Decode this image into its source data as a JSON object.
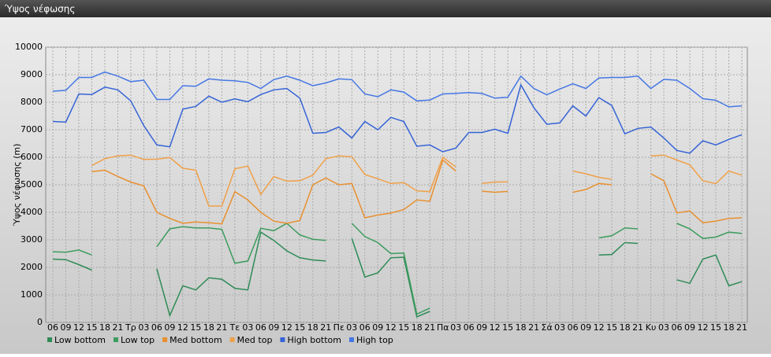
{
  "chart_data": {
    "type": "line",
    "title": "Ύψος νέφωσης",
    "y_label": "Ύψος νέφωσης (m)",
    "categories": [
      "06",
      "09",
      "12",
      "15",
      "18",
      "21",
      "Τρ",
      "03",
      "06",
      "09",
      "12",
      "15",
      "18",
      "21",
      "Τε",
      "03",
      "06",
      "09",
      "12",
      "15",
      "18",
      "21",
      "Πε",
      "03",
      "06",
      "09",
      "12",
      "15",
      "18",
      "21",
      "Πα",
      "03",
      "06",
      "09",
      "12",
      "15",
      "18",
      "21",
      "Σά",
      "03",
      "06",
      "09",
      "12",
      "15",
      "18",
      "21",
      "Κυ",
      "03",
      "06",
      "09",
      "12",
      "15",
      "18",
      "21"
    ],
    "ylim": [
      0,
      10000
    ],
    "yticks": [
      0,
      1000,
      2000,
      3000,
      4000,
      5000,
      6000,
      7000,
      8000,
      9000,
      10000
    ],
    "grid": true,
    "legend": "bottom",
    "series": [
      {
        "name": "Low bottom",
        "color": "#2e8b57",
        "values": [
          2300,
          2280,
          2100,
          1900,
          null,
          null,
          null,
          null,
          1950,
          250,
          1330,
          1180,
          1620,
          1570,
          1240,
          1180,
          3280,
          2980,
          2600,
          2350,
          2270,
          2230,
          null,
          3050,
          1650,
          1800,
          2350,
          2370,
          200,
          400,
          null,
          null,
          null,
          null,
          null,
          null,
          null,
          null,
          null,
          null,
          null,
          null,
          2450,
          2470,
          2900,
          2870,
          null,
          null,
          1550,
          1420,
          2300,
          2450,
          1330,
          1480
        ]
      },
      {
        "name": "Low top",
        "color": "#3c9c5e",
        "values": [
          2570,
          2550,
          2630,
          2450,
          null,
          null,
          null,
          null,
          2750,
          3400,
          3480,
          3430,
          3430,
          3380,
          2150,
          2230,
          3420,
          3330,
          3600,
          3180,
          3020,
          2980,
          null,
          3600,
          3120,
          2900,
          2500,
          2520,
          300,
          520,
          null,
          null,
          null,
          null,
          null,
          null,
          null,
          null,
          null,
          null,
          null,
          null,
          3070,
          3150,
          3430,
          3400,
          null,
          null,
          3600,
          3400,
          3050,
          3100,
          3280,
          3230
        ]
      },
      {
        "name": "Med bottom",
        "color": "#e8902f",
        "values": [
          null,
          null,
          null,
          5480,
          5530,
          5300,
          5100,
          4960,
          4000,
          3780,
          3600,
          3650,
          3620,
          3580,
          4750,
          4450,
          4000,
          3680,
          3600,
          3700,
          5000,
          5250,
          5000,
          5050,
          3800,
          3900,
          3970,
          4100,
          4450,
          4400,
          5900,
          5500,
          null,
          4770,
          4730,
          4760,
          null,
          null,
          null,
          null,
          4730,
          4830,
          5050,
          5000,
          null,
          null,
          5400,
          5150,
          3980,
          4050,
          3620,
          3680,
          3780,
          3800
        ]
      },
      {
        "name": "Med top",
        "color": "#f0a048",
        "values": [
          null,
          null,
          null,
          5700,
          5950,
          6050,
          6080,
          5920,
          5930,
          5990,
          5600,
          5530,
          4230,
          4230,
          5580,
          5680,
          4650,
          5300,
          5130,
          5150,
          5350,
          5950,
          6050,
          6020,
          5370,
          5220,
          5050,
          5080,
          4780,
          4750,
          6000,
          5650,
          null,
          5050,
          5100,
          5110,
          null,
          null,
          null,
          null,
          5500,
          5400,
          5270,
          5200,
          null,
          null,
          6050,
          6080,
          5900,
          5730,
          5150,
          5040,
          5500,
          5350
        ]
      },
      {
        "name": "High bottom",
        "color": "#3563d6",
        "values": [
          7300,
          7280,
          8300,
          8280,
          8550,
          8450,
          8050,
          7150,
          6450,
          6380,
          7750,
          7850,
          8220,
          8000,
          8120,
          8020,
          8280,
          8450,
          8500,
          8150,
          6870,
          6900,
          7100,
          6700,
          7300,
          7000,
          7450,
          7300,
          6400,
          6450,
          6200,
          6330,
          6900,
          6900,
          7020,
          6870,
          8630,
          7800,
          7200,
          7250,
          7870,
          7500,
          8170,
          7880,
          6850,
          7050,
          7100,
          6700,
          6250,
          6150,
          6600,
          6450,
          6650,
          6820
        ]
      },
      {
        "name": "High top",
        "color": "#4577e4",
        "values": [
          8400,
          8430,
          8900,
          8900,
          9100,
          8950,
          8750,
          8800,
          8100,
          8100,
          8600,
          8580,
          8850,
          8800,
          8780,
          8720,
          8500,
          8820,
          8950,
          8800,
          8600,
          8700,
          8850,
          8820,
          8300,
          8200,
          8450,
          8370,
          8050,
          8080,
          8300,
          8320,
          8350,
          8320,
          8150,
          8180,
          8950,
          8500,
          8270,
          8480,
          8670,
          8500,
          8880,
          8900,
          8900,
          8950,
          8500,
          8830,
          8800,
          8500,
          8130,
          8070,
          7830,
          7870
        ]
      }
    ]
  }
}
